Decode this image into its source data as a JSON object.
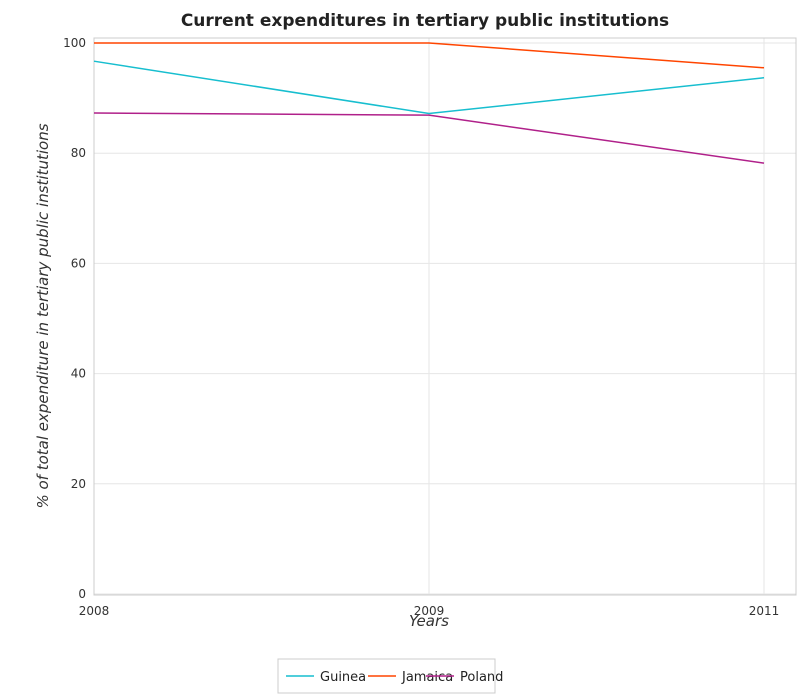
{
  "chart_data": {
    "type": "line",
    "title": "Current expenditures in tertiary public institutions",
    "xlabel": "Years",
    "ylabel": "% of total expenditure in tertiary public institutions",
    "categories": [
      "2008",
      "2009",
      "2011"
    ],
    "series": [
      {
        "name": "Guinea",
        "color": "#17becf",
        "values": [
          96.7,
          87.2,
          93.7
        ]
      },
      {
        "name": "Jamaica",
        "color": "#ff4500",
        "values": [
          100.0,
          100.0,
          95.5
        ]
      },
      {
        "name": "Poland",
        "color": "#b0208a",
        "values": [
          87.3,
          86.9,
          78.2
        ]
      }
    ],
    "yticks": [
      0,
      20,
      40,
      60,
      80,
      100
    ],
    "ylim": [
      0,
      100
    ],
    "grid": true,
    "legend_position": "bottom-center"
  }
}
